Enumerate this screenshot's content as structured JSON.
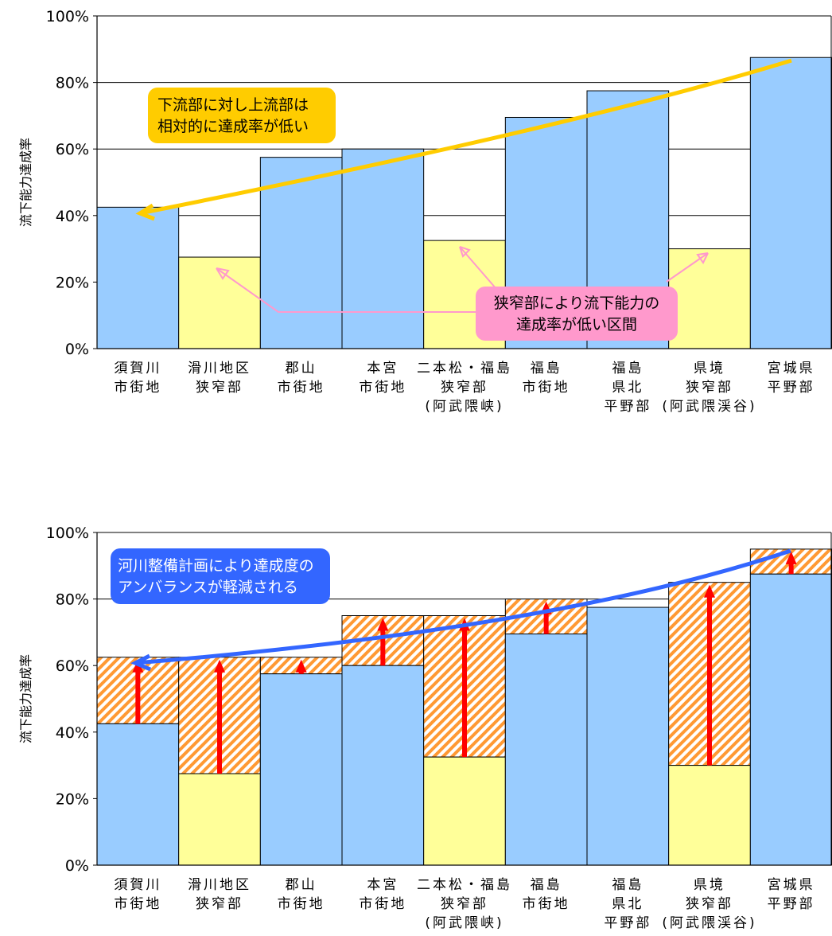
{
  "chart_data": [
    {
      "type": "bar",
      "ylabel": "流下能力達成率",
      "ylim": [
        0,
        100
      ],
      "y_ticks": [
        "0%",
        "20%",
        "40%",
        "60%",
        "80%",
        "100%"
      ],
      "categories": [
        [
          "須賀川",
          "市街地"
        ],
        [
          "滑川地区",
          "狭窄部"
        ],
        [
          "郡山",
          "市街地"
        ],
        [
          "本宮",
          "市街地"
        ],
        [
          "二本松・福島",
          "狭窄部",
          "(阿武隈峡)"
        ],
        [
          "福島",
          "市街地"
        ],
        [
          "福島",
          "県北",
          "平野部"
        ],
        [
          "県境",
          "狭窄部",
          "(阿武隈渓谷)"
        ],
        [
          "宮城県",
          "平野部"
        ]
      ],
      "values": [
        42.5,
        27.5,
        57.5,
        60,
        32.5,
        69.5,
        77.5,
        30,
        87.5
      ],
      "narrow_section": [
        false,
        true,
        false,
        false,
        true,
        false,
        false,
        true,
        false
      ],
      "colors": {
        "normal": "#99ccff",
        "narrow": "#ffff99",
        "trend_arrow": "#ffcc00"
      },
      "annotations": [
        {
          "text": [
            "下流部に対し上流部は",
            "相対的に達成率が低い"
          ],
          "color": "#ffcc00"
        },
        {
          "text": [
            "狭窄部により流下能力の",
            "達成率が低い区間"
          ],
          "color": "#ff99cc"
        }
      ]
    },
    {
      "type": "bar",
      "ylabel": "流下能力達成率",
      "ylim": [
        0,
        100
      ],
      "y_ticks": [
        "0%",
        "20%",
        "40%",
        "60%",
        "80%",
        "100%"
      ],
      "categories": [
        [
          "須賀川",
          "市街地"
        ],
        [
          "滑川地区",
          "狭窄部"
        ],
        [
          "郡山",
          "市街地"
        ],
        [
          "本宮",
          "市街地"
        ],
        [
          "二本松・福島",
          "狭窄部",
          "(阿武隈峡)"
        ],
        [
          "福島",
          "市街地"
        ],
        [
          "福島",
          "県北",
          "平野部"
        ],
        [
          "県境",
          "狭窄部",
          "(阿武隈渓谷)"
        ],
        [
          "宮城県",
          "平野部"
        ]
      ],
      "values": [
        42.5,
        27.5,
        57.5,
        60,
        32.5,
        69.5,
        77.5,
        30,
        87.5
      ],
      "improved_values": [
        62.5,
        62.5,
        62.5,
        75,
        75,
        80,
        77.5,
        85,
        95
      ],
      "narrow_section": [
        false,
        true,
        false,
        false,
        true,
        false,
        false,
        true,
        false
      ],
      "colors": {
        "normal": "#99ccff",
        "narrow": "#ffff99",
        "improvement": "#ff9933",
        "arrow": "#ff0000",
        "trend_arrow": "#3366ff"
      },
      "annotations": [
        {
          "text": [
            "河川整備計画により達成度の",
            "アンバランスが軽減される"
          ],
          "color": "#3366ff"
        }
      ]
    }
  ]
}
